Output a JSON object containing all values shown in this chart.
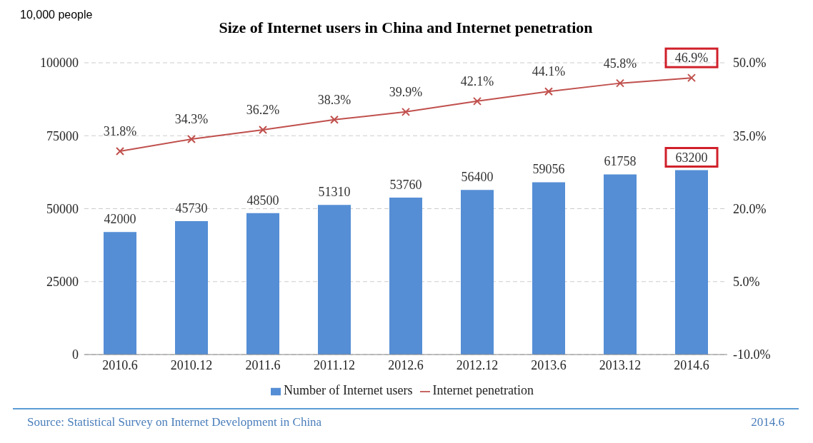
{
  "chart_data": {
    "type": "bar",
    "title": "Size of Internet users in China and Internet penetration",
    "ylabel": "10,000 people",
    "categories": [
      "2010.6",
      "2010.12",
      "2011.6",
      "2011.12",
      "2012.6",
      "2012.12",
      "2013.6",
      "2013.12",
      "2014.6"
    ],
    "series": [
      {
        "name": "Number of Internet users",
        "color": "#558ed5",
        "values": [
          42000,
          45730,
          48500,
          51310,
          53760,
          56400,
          59056,
          61758,
          63200
        ],
        "value_labels": [
          "42000",
          "45730",
          "48500",
          "51310",
          "53760",
          "56400",
          "59056",
          "61758",
          "63200"
        ]
      },
      {
        "name": "Internet penetration",
        "type": "line",
        "axis": "y2",
        "color": "#c0504d",
        "values": [
          31.8,
          34.3,
          36.2,
          38.3,
          39.9,
          42.1,
          44.1,
          45.8,
          46.9
        ],
        "value_labels": [
          "31.8%",
          "34.3%",
          "36.2%",
          "38.3%",
          "39.9%",
          "42.1%",
          "44.1%",
          "45.8%",
          "46.9%"
        ]
      }
    ],
    "ylim": [
      0,
      100000
    ],
    "yticks": [
      0,
      25000,
      50000,
      75000,
      100000
    ],
    "y2lim": [
      -10,
      50
    ],
    "y2ticks": [
      {
        "value": -10,
        "label": "-10.0%"
      },
      {
        "value": 5,
        "label": "5.0%"
      },
      {
        "value": 20,
        "label": "20.0%"
      },
      {
        "value": 35,
        "label": "35.0%"
      },
      {
        "value": 50,
        "label": "50.0%"
      }
    ],
    "grid": "y",
    "legend": "bottom",
    "marker": "cross",
    "line_style": "solid",
    "annotations": [
      "Source: Statistical Survey on Internet Development in China",
      "2014.6"
    ]
  }
}
